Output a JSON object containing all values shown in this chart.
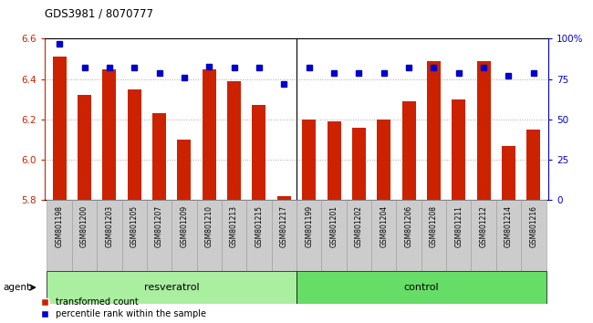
{
  "title": "GDS3981 / 8070777",
  "samples": [
    "GSM801198",
    "GSM801200",
    "GSM801203",
    "GSM801205",
    "GSM801207",
    "GSM801209",
    "GSM801210",
    "GSM801213",
    "GSM801215",
    "GSM801217",
    "GSM801199",
    "GSM801201",
    "GSM801202",
    "GSM801204",
    "GSM801206",
    "GSM801208",
    "GSM801211",
    "GSM801212",
    "GSM801214",
    "GSM801216"
  ],
  "groups": [
    "resveratrol",
    "resveratrol",
    "resveratrol",
    "resveratrol",
    "resveratrol",
    "resveratrol",
    "resveratrol",
    "resveratrol",
    "resveratrol",
    "resveratrol",
    "control",
    "control",
    "control",
    "control",
    "control",
    "control",
    "control",
    "control",
    "control",
    "control"
  ],
  "bar_values": [
    6.51,
    6.32,
    6.45,
    6.35,
    6.23,
    6.1,
    6.45,
    6.39,
    6.27,
    5.82,
    6.2,
    6.19,
    6.16,
    6.2,
    6.29,
    6.49,
    6.3,
    6.49,
    6.07,
    6.15
  ],
  "dot_values": [
    97,
    82,
    82,
    82,
    79,
    76,
    83,
    82,
    82,
    72,
    82,
    79,
    79,
    79,
    82,
    82,
    79,
    82,
    77,
    79
  ],
  "ylim_left": [
    5.8,
    6.6
  ],
  "ylim_right": [
    0,
    100
  ],
  "yticks_left": [
    5.8,
    6.0,
    6.2,
    6.4,
    6.6
  ],
  "yticks_right": [
    0,
    25,
    50,
    75,
    100
  ],
  "ytick_labels_right": [
    "0",
    "25",
    "50",
    "75",
    "100%"
  ],
  "bar_color": "#cc2200",
  "dot_color": "#0000cc",
  "grid_color": "#aaaaaa",
  "bg_color": "#ffffff",
  "axis_color_left": "#cc2200",
  "axis_color_right": "#0000cc",
  "group_colors": {
    "resveratrol": "#aaeea0",
    "control": "#66dd66"
  },
  "agent_label": "agent",
  "bar_width": 0.55,
  "legend_items": [
    "transformed count",
    "percentile rank within the sample"
  ],
  "xtick_bg": "#cccccc",
  "n_resveratrol": 10,
  "n_control": 10
}
